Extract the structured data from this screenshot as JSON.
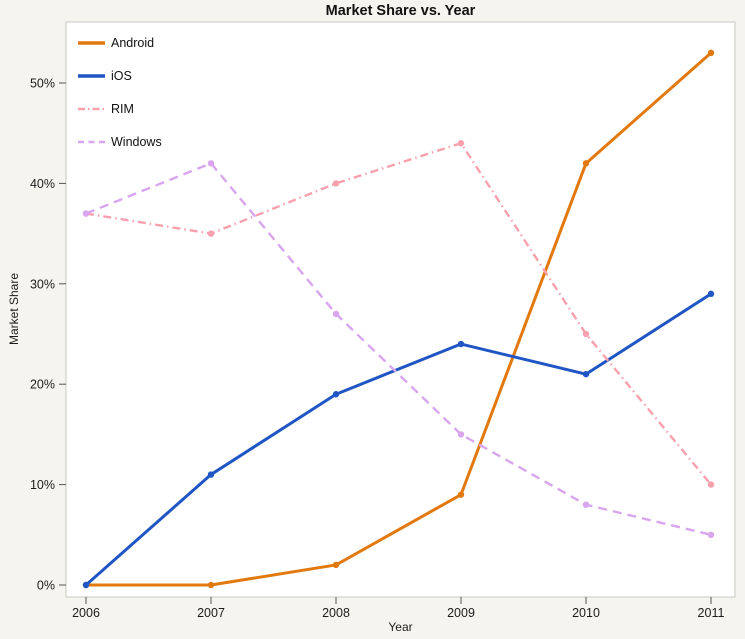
{
  "chart_data": {
    "type": "line",
    "title": "Market Share vs. Year",
    "xlabel": "Year",
    "ylabel": "Market Share",
    "x": [
      2006,
      2007,
      2008,
      2009,
      2010,
      2011
    ],
    "y_ticks": [
      0,
      10,
      20,
      30,
      40,
      50
    ],
    "y_tick_labels": [
      "0%",
      "10%",
      "20%",
      "30%",
      "40%",
      "50%"
    ],
    "ylim": [
      0,
      56
    ],
    "grid": false,
    "legend_position": "top-left",
    "colors": {
      "background": "#F5F4EE",
      "plot_background": "#FFFFFF",
      "frame": "#C8C8C2",
      "tick": "#555555",
      "text": "#1c1c1c"
    },
    "series": [
      {
        "name": "Android",
        "color": "#E2790F",
        "style": "solid",
        "width": 3,
        "values": [
          0,
          0,
          2,
          9,
          42,
          53
        ]
      },
      {
        "name": "iOS",
        "color": "#1F56C4",
        "style": "solid",
        "width": 3,
        "values": [
          0,
          11,
          19,
          24,
          21,
          29
        ]
      },
      {
        "name": "RIM",
        "color": "#F8A0AE",
        "style": "dash-dot",
        "width": 2.4,
        "values": [
          37,
          35,
          40,
          44,
          25,
          10
        ]
      },
      {
        "name": "Windows",
        "color": "#D8A5EE",
        "style": "dashed",
        "width": 2.4,
        "values": [
          37,
          42,
          27,
          15,
          8,
          5
        ]
      }
    ]
  }
}
